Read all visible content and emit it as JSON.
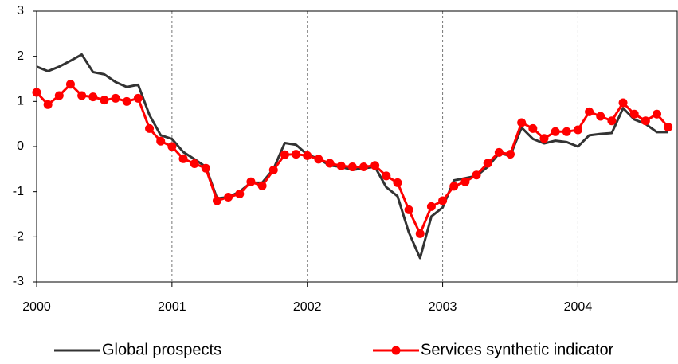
{
  "chart_data": {
    "type": "line",
    "categories": [
      "2000",
      null,
      null,
      null,
      null,
      null,
      null,
      null,
      null,
      null,
      null,
      null,
      "2001",
      null,
      null,
      null,
      null,
      null,
      null,
      null,
      null,
      null,
      null,
      null,
      "2002",
      null,
      null,
      null,
      null,
      null,
      null,
      null,
      null,
      null,
      null,
      null,
      "2003",
      null,
      null,
      null,
      null,
      null,
      null,
      null,
      null,
      null,
      null,
      null,
      "2004",
      null,
      null,
      null,
      null,
      null,
      null,
      null,
      null
    ],
    "series": [
      {
        "name": "Global prospects",
        "color": "#333333",
        "marker": false,
        "values": [
          1.77,
          1.67,
          1.77,
          1.9,
          2.04,
          1.65,
          1.6,
          1.43,
          1.32,
          1.37,
          0.7,
          0.25,
          0.17,
          -0.12,
          -0.28,
          -0.45,
          -1.15,
          -1.12,
          -1.0,
          -0.8,
          -0.8,
          -0.5,
          0.08,
          0.04,
          -0.18,
          -0.27,
          -0.42,
          -0.45,
          -0.52,
          -0.48,
          -0.45,
          -0.9,
          -1.1,
          -1.9,
          -2.47,
          -1.55,
          -1.35,
          -0.75,
          -0.7,
          -0.65,
          -0.45,
          -0.15,
          -0.2,
          0.42,
          0.17,
          0.07,
          0.13,
          0.1,
          0.0,
          0.25,
          0.28,
          0.3,
          0.85,
          0.6,
          0.5,
          0.32,
          0.32
        ]
      },
      {
        "name": "Services synthetic indicator",
        "color": "#ff0000",
        "marker": true,
        "values": [
          1.2,
          0.93,
          1.13,
          1.38,
          1.13,
          1.1,
          1.03,
          1.07,
          1.0,
          1.07,
          0.4,
          0.12,
          0.0,
          -0.27,
          -0.38,
          -0.48,
          -1.2,
          -1.12,
          -1.05,
          -0.78,
          -0.87,
          -0.52,
          -0.18,
          -0.17,
          -0.2,
          -0.28,
          -0.37,
          -0.43,
          -0.45,
          -0.45,
          -0.42,
          -0.65,
          -0.8,
          -1.4,
          -1.93,
          -1.33,
          -1.2,
          -0.88,
          -0.78,
          -0.63,
          -0.37,
          -0.13,
          -0.17,
          0.53,
          0.4,
          0.18,
          0.33,
          0.33,
          0.37,
          0.77,
          0.67,
          0.57,
          0.97,
          0.72,
          0.57,
          0.72,
          0.43
        ]
      }
    ],
    "ylim": [
      -3,
      3
    ],
    "yticks": [
      -3,
      -2,
      -1,
      0,
      1,
      2,
      3
    ],
    "grid": true
  }
}
